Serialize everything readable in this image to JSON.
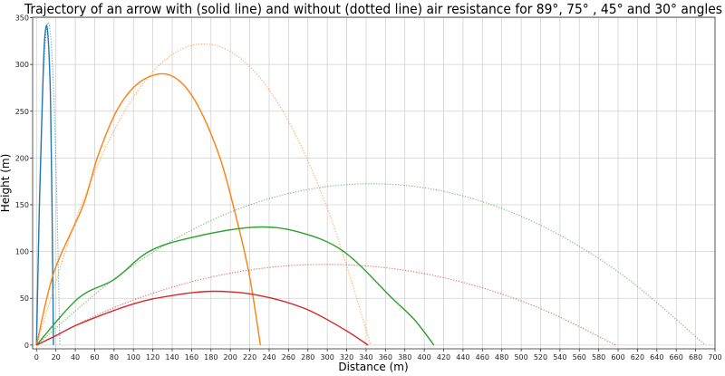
{
  "chart_data": {
    "type": "line",
    "title": "Trajectory of an arrow with (solid line) and without (dotted line) air resistance for 89°, 75° , 45° and 30° angles",
    "xlabel": "Distance (m)",
    "ylabel": "Height (m)",
    "xlim": [
      -4,
      700
    ],
    "ylim": [
      -4,
      350.5
    ],
    "xticks": [
      0,
      20,
      40,
      60,
      80,
      100,
      120,
      140,
      160,
      180,
      200,
      220,
      240,
      260,
      280,
      300,
      320,
      340,
      360,
      380,
      400,
      420,
      440,
      460,
      480,
      500,
      520,
      540,
      560,
      580,
      600,
      620,
      640,
      660,
      680,
      700
    ],
    "yticks": [
      0,
      50,
      100,
      150,
      200,
      250,
      300,
      350
    ],
    "grid": true,
    "series": [
      {
        "angle": "89°",
        "style": "solid",
        "color": "#1f77b4",
        "x": [
          0,
          3,
          6,
          8,
          10.3,
          12.5,
          14.5,
          16,
          17.5
        ],
        "y": [
          0,
          150,
          260,
          320,
          342,
          320,
          260,
          150,
          0
        ]
      },
      {
        "angle": "89°",
        "style": "dotted",
        "color": "#1f77b4",
        "x": [
          0,
          3.0,
          6.0,
          9.0,
          12.05,
          15.1,
          18.1,
          21.1,
          24.1
        ],
        "y": [
          0,
          150.9,
          258.7,
          323.3,
          344.9,
          323.3,
          258.7,
          150.9,
          0
        ]
      },
      {
        "angle": "75°",
        "style": "solid",
        "color": "#ff7f0e",
        "x": [
          0,
          18,
          48,
          63,
          83,
          105,
          130,
          150,
          169,
          189,
          203,
          219,
          231
        ],
        "y": [
          0,
          78,
          149,
          201,
          251,
          280,
          290,
          280,
          251,
          201,
          149,
          78,
          0
        ]
      },
      {
        "angle": "75°",
        "style": "dotted",
        "color": "#ff7f0e",
        "x": [
          0,
          43.1,
          86.3,
          129.4,
          172.5,
          215.6,
          258.8,
          301.9,
          345
        ],
        "y": [
          0,
          140.9,
          241.5,
          301.9,
          322,
          301.9,
          241.5,
          140.9,
          0
        ]
      },
      {
        "angle": "45°",
        "style": "solid",
        "color": "#2ca02c",
        "x": [
          0,
          43,
          80,
          116,
          160,
          224,
          270,
          317,
          367,
          390,
          410
        ],
        "y": [
          0,
          50,
          70,
          100,
          115,
          126,
          121,
          100,
          50,
          27,
          0
        ]
      },
      {
        "angle": "45°",
        "style": "dotted",
        "color": "#2ca02c",
        "x": [
          0,
          86.3,
          172.5,
          258.8,
          345,
          431.3,
          517.5,
          603.8,
          690
        ],
        "y": [
          0,
          75.5,
          129.4,
          161.7,
          172.5,
          161.7,
          129.4,
          75.5,
          0
        ]
      },
      {
        "angle": "30°",
        "style": "solid",
        "color": "#d62728",
        "x": [
          0,
          20,
          45,
          100,
          140,
          183,
          230,
          277,
          317,
          342
        ],
        "y": [
          0,
          10,
          23,
          44,
          53,
          57.5,
          53,
          39,
          17,
          0
        ]
      },
      {
        "angle": "30°",
        "style": "dotted",
        "color": "#d62728",
        "x": [
          0,
          74.7,
          149.4,
          224.1,
          298.8,
          373.5,
          448.2,
          522.9,
          597.6
        ],
        "y": [
          0,
          37.8,
          64.7,
          80.9,
          86.3,
          80.9,
          64.7,
          37.8,
          0
        ]
      }
    ]
  }
}
